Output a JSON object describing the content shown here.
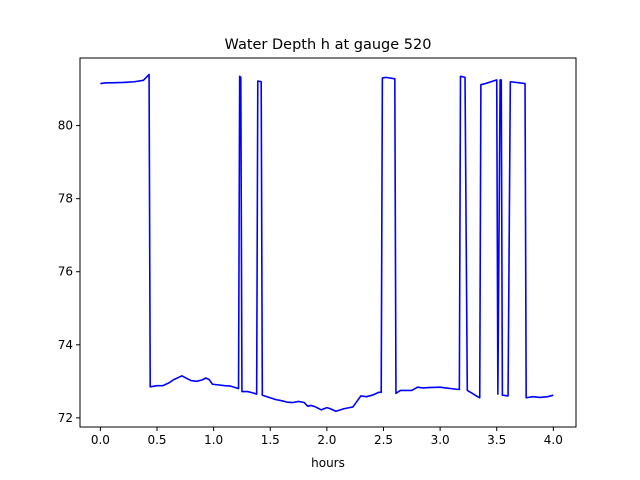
{
  "chart_data": {
    "type": "line",
    "title": "Water Depth h at gauge 520",
    "xlabel": "hours",
    "ylabel": "",
    "xlim": [
      -0.18,
      4.2
    ],
    "ylim": [
      71.75,
      81.85
    ],
    "x_ticks": [
      {
        "value": 0.0,
        "label": "0.0"
      },
      {
        "value": 0.5,
        "label": "0.5"
      },
      {
        "value": 1.0,
        "label": "1.0"
      },
      {
        "value": 1.5,
        "label": "1.5"
      },
      {
        "value": 2.0,
        "label": "2.0"
      },
      {
        "value": 2.5,
        "label": "2.5"
      },
      {
        "value": 3.0,
        "label": "3.0"
      },
      {
        "value": 3.5,
        "label": "3.5"
      },
      {
        "value": 4.0,
        "label": "4.0"
      }
    ],
    "y_ticks": [
      {
        "value": 72,
        "label": "72"
      },
      {
        "value": 74,
        "label": "74"
      },
      {
        "value": 76,
        "label": "76"
      },
      {
        "value": 78,
        "label": "78"
      },
      {
        "value": 80,
        "label": "80"
      }
    ],
    "grid": false,
    "legend": "none",
    "series": [
      {
        "color": "#0000ff",
        "points": [
          [
            0.0,
            81.15
          ],
          [
            0.05,
            81.17
          ],
          [
            0.1,
            81.17
          ],
          [
            0.2,
            81.18
          ],
          [
            0.3,
            81.2
          ],
          [
            0.38,
            81.24
          ],
          [
            0.43,
            81.4
          ],
          [
            0.44,
            72.85
          ],
          [
            0.5,
            72.88
          ],
          [
            0.55,
            72.88
          ],
          [
            0.6,
            72.95
          ],
          [
            0.65,
            73.05
          ],
          [
            0.7,
            73.12
          ],
          [
            0.72,
            73.15
          ],
          [
            0.75,
            73.1
          ],
          [
            0.8,
            73.02
          ],
          [
            0.85,
            73.0
          ],
          [
            0.9,
            73.04
          ],
          [
            0.93,
            73.09
          ],
          [
            0.96,
            73.05
          ],
          [
            0.99,
            72.92
          ],
          [
            1.05,
            72.9
          ],
          [
            1.1,
            72.88
          ],
          [
            1.15,
            72.87
          ],
          [
            1.2,
            72.82
          ],
          [
            1.22,
            72.8
          ],
          [
            1.23,
            81.35
          ],
          [
            1.24,
            81.32
          ],
          [
            1.25,
            72.72
          ],
          [
            1.3,
            72.72
          ],
          [
            1.35,
            72.68
          ],
          [
            1.38,
            72.65
          ],
          [
            1.39,
            81.22
          ],
          [
            1.42,
            81.2
          ],
          [
            1.43,
            72.62
          ],
          [
            1.5,
            72.55
          ],
          [
            1.55,
            72.5
          ],
          [
            1.6,
            72.47
          ],
          [
            1.65,
            72.43
          ],
          [
            1.7,
            72.42
          ],
          [
            1.75,
            72.45
          ],
          [
            1.8,
            72.42
          ],
          [
            1.83,
            72.32
          ],
          [
            1.86,
            72.34
          ],
          [
            1.9,
            72.3
          ],
          [
            1.95,
            72.22
          ],
          [
            2.0,
            72.28
          ],
          [
            2.03,
            72.25
          ],
          [
            2.08,
            72.18
          ],
          [
            2.15,
            72.25
          ],
          [
            2.2,
            72.28
          ],
          [
            2.23,
            72.3
          ],
          [
            2.3,
            72.6
          ],
          [
            2.35,
            72.58
          ],
          [
            2.4,
            72.62
          ],
          [
            2.46,
            72.7
          ],
          [
            2.48,
            72.7
          ],
          [
            2.49,
            81.3
          ],
          [
            2.52,
            81.32
          ],
          [
            2.6,
            81.28
          ],
          [
            2.61,
            72.67
          ],
          [
            2.65,
            72.75
          ],
          [
            2.7,
            72.75
          ],
          [
            2.75,
            72.75
          ],
          [
            2.8,
            72.84
          ],
          [
            2.85,
            72.82
          ],
          [
            2.9,
            72.83
          ],
          [
            3.0,
            72.84
          ],
          [
            3.05,
            72.82
          ],
          [
            3.1,
            72.8
          ],
          [
            3.15,
            72.78
          ],
          [
            3.17,
            72.78
          ],
          [
            3.18,
            81.35
          ],
          [
            3.22,
            81.32
          ],
          [
            3.24,
            72.75
          ],
          [
            3.28,
            72.68
          ],
          [
            3.32,
            72.6
          ],
          [
            3.35,
            72.55
          ],
          [
            3.36,
            81.12
          ],
          [
            3.4,
            81.15
          ],
          [
            3.45,
            81.2
          ],
          [
            3.5,
            81.25
          ],
          [
            3.51,
            72.65
          ],
          [
            3.53,
            81.25
          ],
          [
            3.54,
            81.25
          ],
          [
            3.55,
            72.62
          ],
          [
            3.6,
            72.6
          ],
          [
            3.62,
            81.2
          ],
          [
            3.7,
            81.17
          ],
          [
            3.75,
            81.15
          ],
          [
            3.76,
            72.55
          ],
          [
            3.82,
            72.58
          ],
          [
            3.88,
            72.56
          ],
          [
            3.95,
            72.58
          ],
          [
            4.0,
            72.62
          ]
        ]
      }
    ]
  }
}
